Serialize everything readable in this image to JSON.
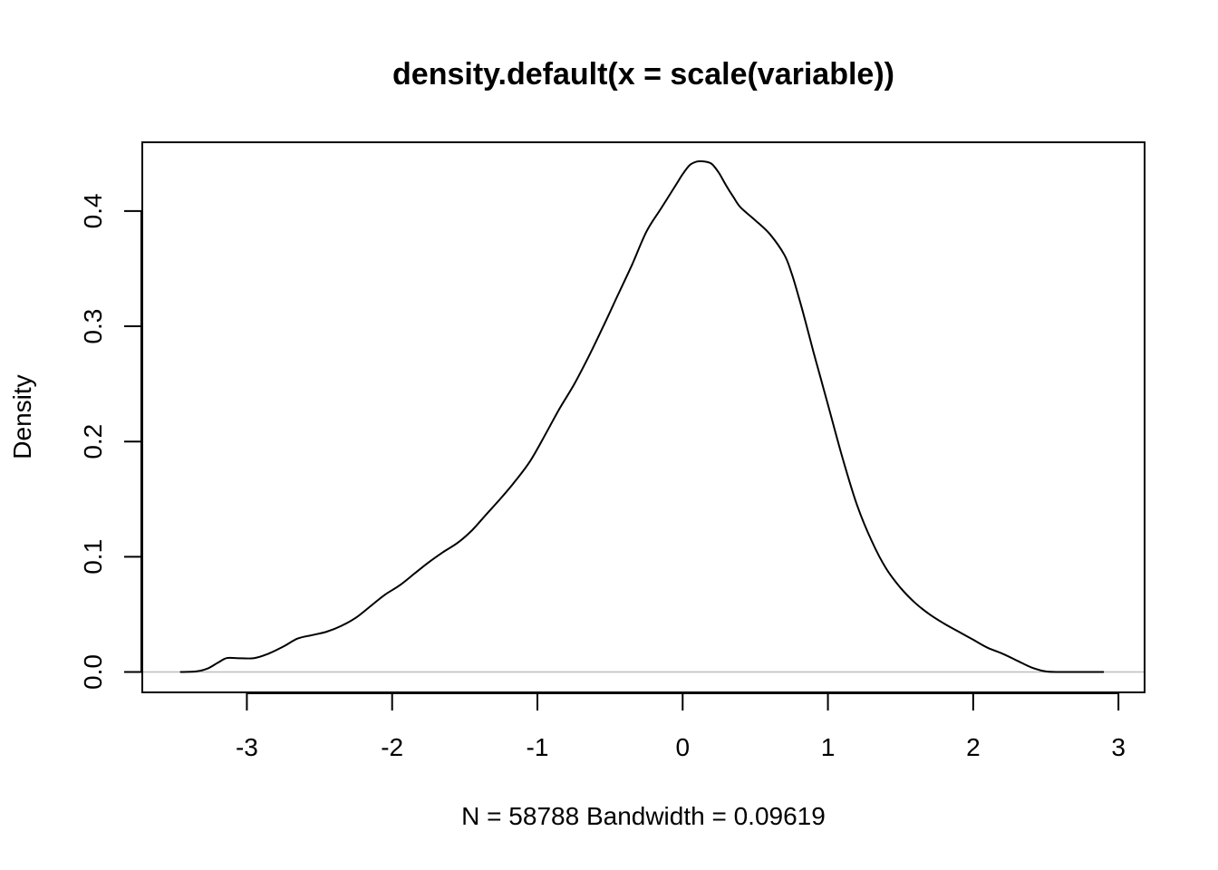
{
  "chart_data": {
    "type": "line",
    "title": "density.default(x = scale(variable))",
    "xlabel": "N = 58788   Bandwidth = 0.09619",
    "ylabel": "Density",
    "xlim": [
      -3.72,
      3.18
    ],
    "ylim": [
      -0.0177,
      0.4597
    ],
    "x_ticks": [
      -3,
      -2,
      -1,
      0,
      1,
      2,
      3
    ],
    "x_tick_labels": [
      "-3",
      "-2",
      "-1",
      "0",
      "1",
      "2",
      "3"
    ],
    "y_ticks": [
      0.0,
      0.1,
      0.2,
      0.3,
      0.4
    ],
    "y_tick_labels": [
      "0.0",
      "0.1",
      "0.2",
      "0.3",
      "0.4"
    ],
    "baseline": 0,
    "grid": false,
    "legend": "none",
    "series": [
      {
        "color": "#000000",
        "x": [
          -3.46,
          -3.35,
          -3.27,
          -3.2,
          -3.14,
          -3.07,
          -2.95,
          -2.85,
          -2.75,
          -2.65,
          -2.55,
          -2.45,
          -2.35,
          -2.25,
          -2.15,
          -2.05,
          -1.95,
          -1.85,
          -1.75,
          -1.65,
          -1.55,
          -1.45,
          -1.35,
          -1.25,
          -1.15,
          -1.05,
          -0.95,
          -0.85,
          -0.75,
          -0.65,
          -0.55,
          -0.45,
          -0.35,
          -0.25,
          -0.15,
          -0.05,
          0.0,
          0.05,
          0.1,
          0.15,
          0.2,
          0.25,
          0.3,
          0.35,
          0.4,
          0.5,
          0.6,
          0.7,
          0.75,
          0.8,
          0.85,
          0.9,
          0.95,
          1.0,
          1.1,
          1.2,
          1.3,
          1.4,
          1.5,
          1.6,
          1.7,
          1.8,
          1.9,
          2.0,
          2.1,
          2.2,
          2.3,
          2.4,
          2.5,
          2.6,
          2.7,
          2.8,
          2.9
        ],
        "y": [
          0.0,
          0.0005,
          0.003,
          0.008,
          0.012,
          0.012,
          0.012,
          0.016,
          0.022,
          0.029,
          0.032,
          0.035,
          0.04,
          0.047,
          0.057,
          0.067,
          0.075,
          0.085,
          0.095,
          0.104,
          0.112,
          0.123,
          0.137,
          0.151,
          0.166,
          0.183,
          0.205,
          0.228,
          0.249,
          0.273,
          0.299,
          0.326,
          0.353,
          0.382,
          0.402,
          0.422,
          0.432,
          0.44,
          0.443,
          0.443,
          0.441,
          0.433,
          0.422,
          0.412,
          0.403,
          0.392,
          0.38,
          0.362,
          0.346,
          0.325,
          0.302,
          0.278,
          0.255,
          0.232,
          0.186,
          0.145,
          0.114,
          0.09,
          0.073,
          0.06,
          0.05,
          0.042,
          0.035,
          0.028,
          0.021,
          0.016,
          0.01,
          0.004,
          0.0005,
          0.0,
          0.0,
          0.0,
          0.0
        ]
      }
    ]
  }
}
